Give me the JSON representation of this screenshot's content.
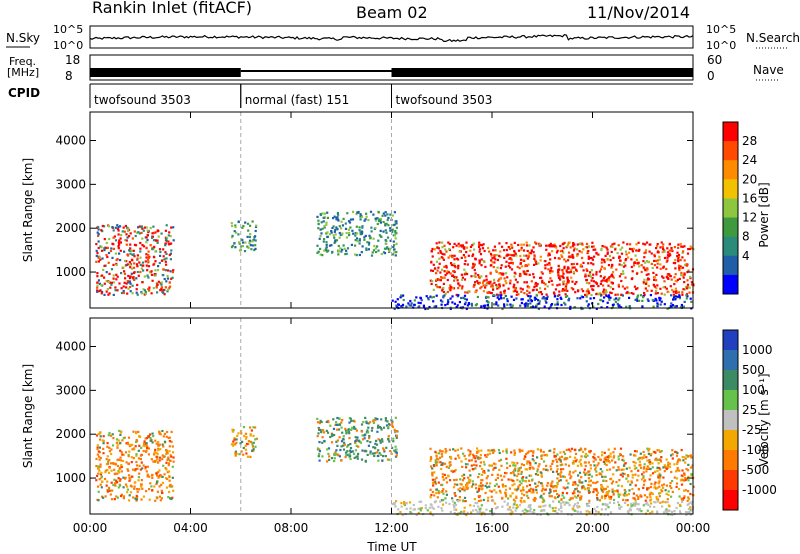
{
  "header": {
    "station": "Rankin Inlet (fitACF)",
    "beam": "Beam 02",
    "date": "11/Nov/2014"
  },
  "top_panels": {
    "nsky_label": "N.Sky",
    "nsearch_label": "N.Search",
    "nsky_ticks": [
      "10^5",
      "10^0"
    ],
    "nsearch_ticks": [
      "10^5",
      "10^0"
    ],
    "freq_label": "Freq.",
    "freq_unit": "[MHz]",
    "freq_ticks": [
      "18",
      "8"
    ],
    "nave_label": "Nave",
    "nave_ticks": [
      "60",
      "0"
    ],
    "cpid_label": "CPID",
    "cpid_segments": [
      {
        "name": "twofsound 3503",
        "start_h": 0,
        "end_h": 6
      },
      {
        "name": "normal (fast) 151",
        "start_h": 6,
        "end_h": 12
      },
      {
        "name": "twofsound 3503",
        "start_h": 12,
        "end_h": 24
      }
    ]
  },
  "chart_data": [
    {
      "type": "heatmap",
      "panel": "power",
      "ylabel": "Slant Range [km]",
      "xlabel": "",
      "x_range_hours": [
        0,
        24
      ],
      "ylim": [
        180,
        4650
      ],
      "yticks": [
        1000,
        2000,
        3000,
        4000
      ],
      "colorbar": {
        "label": "Power [dB]",
        "ticks": [
          "28",
          "24",
          "20",
          "16",
          "12",
          "8",
          "4"
        ],
        "colors": [
          "#ff0000",
          "#ff4a00",
          "#ff8c00",
          "#f2c200",
          "#8ec63f",
          "#3f9a3f",
          "#2a8b7a",
          "#1f5fa8",
          "#0000ff"
        ]
      },
      "regions": [
        {
          "t0": 0.2,
          "t1": 3.3,
          "r0": 500,
          "r1": 2100,
          "level": "mixed-high"
        },
        {
          "t0": 5.6,
          "t1": 6.6,
          "r0": 1500,
          "r1": 2200,
          "level": "mid"
        },
        {
          "t0": 9.0,
          "t1": 12.2,
          "r0": 1400,
          "r1": 2400,
          "level": "mid"
        },
        {
          "t0": 13.5,
          "t1": 24.0,
          "r0": 500,
          "r1": 1700,
          "level": "high"
        },
        {
          "t0": 12.0,
          "t1": 24.0,
          "r0": 180,
          "r1": 500,
          "level": "low"
        }
      ]
    },
    {
      "type": "heatmap",
      "panel": "velocity",
      "ylabel": "Slant Range [km]",
      "xlabel": "Time UT",
      "x_range_hours": [
        0,
        24
      ],
      "ylim": [
        180,
        4650
      ],
      "yticks": [
        1000,
        2000,
        3000,
        4000
      ],
      "xticks": [
        "00:00",
        "04:00",
        "08:00",
        "12:00",
        "16:00",
        "20:00",
        "00:00"
      ],
      "colorbar": {
        "label": "Velocity [m s⁻¹]",
        "ticks": [
          "1000",
          "500",
          "100",
          "25",
          "-25",
          "-100",
          "-500",
          "-1000"
        ],
        "colors": [
          "#2040c0",
          "#2e6fb0",
          "#3d8b64",
          "#66c24a",
          "#c0c0c0",
          "#f2a800",
          "#ff7a00",
          "#ff3a00",
          "#ff0000"
        ]
      },
      "regions": [
        {
          "t0": 0.2,
          "t1": 3.3,
          "r0": 500,
          "r1": 2100,
          "level": "negative"
        },
        {
          "t0": 5.6,
          "t1": 6.6,
          "r0": 1500,
          "r1": 2200,
          "level": "negative"
        },
        {
          "t0": 9.0,
          "t1": 12.2,
          "r0": 1400,
          "r1": 2400,
          "level": "positive"
        },
        {
          "t0": 13.5,
          "t1": 24.0,
          "r0": 500,
          "r1": 1700,
          "level": "negative"
        },
        {
          "t0": 12.0,
          "t1": 24.0,
          "r0": 180,
          "r1": 500,
          "level": "ground"
        }
      ]
    }
  ]
}
